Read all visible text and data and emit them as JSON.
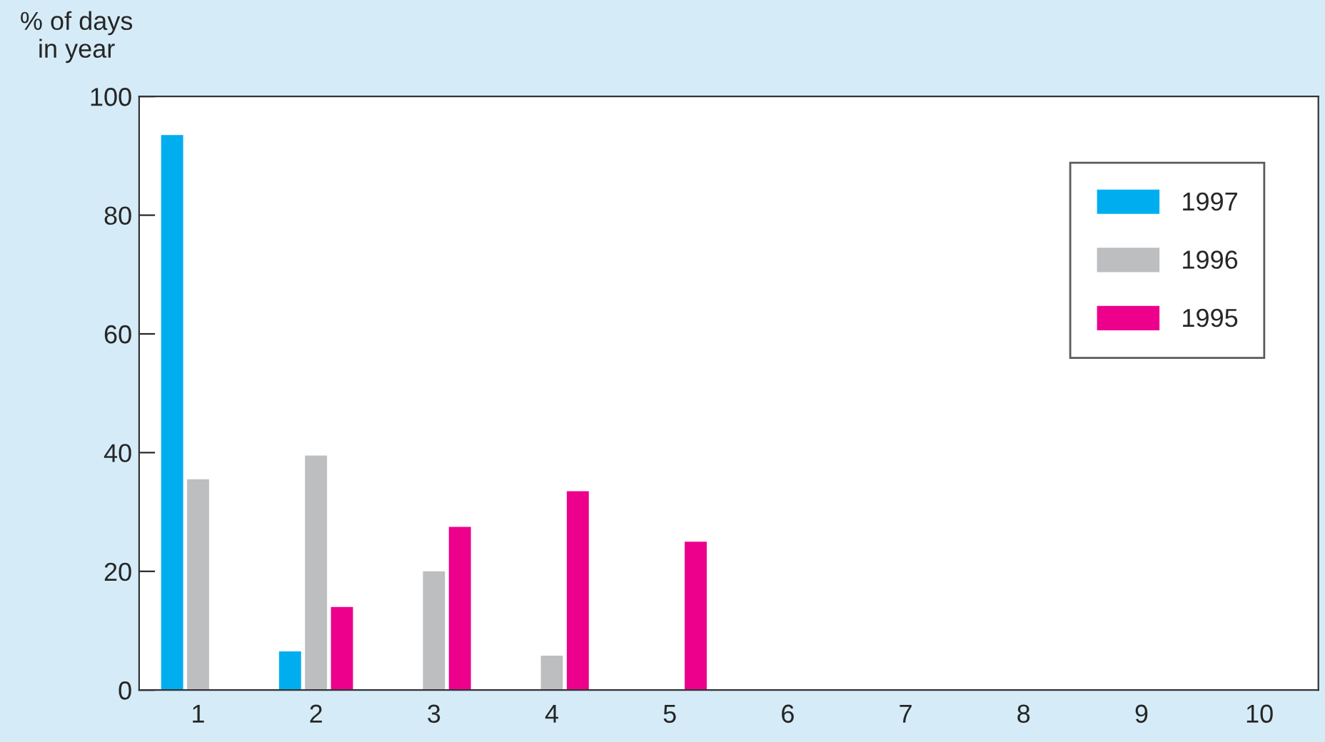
{
  "chart_data": {
    "type": "bar",
    "ylabel": "% of days\nin year",
    "categories": [
      "1",
      "2",
      "3",
      "4",
      "5",
      "6",
      "7",
      "8",
      "9",
      "10"
    ],
    "series": [
      {
        "name": "1997",
        "color": "#00aeef",
        "values": [
          93.5,
          6.5,
          null,
          null,
          null,
          null,
          null,
          null,
          null,
          null
        ]
      },
      {
        "name": "1996",
        "color": "#bcbec0",
        "values": [
          35.5,
          39.5,
          20,
          5.8,
          null,
          null,
          null,
          null,
          null,
          null
        ]
      },
      {
        "name": "1995",
        "color": "#ec008c",
        "values": [
          null,
          14,
          27.5,
          33.5,
          25,
          null,
          null,
          null,
          null,
          null
        ]
      }
    ],
    "ylim": [
      0,
      100
    ],
    "yticks": [
      0,
      20,
      40,
      60,
      80,
      100
    ],
    "grid": false,
    "legend": "top right"
  }
}
